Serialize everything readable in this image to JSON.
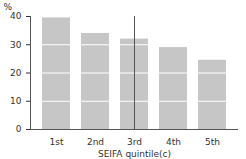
{
  "chart_data": {
    "type": "bar",
    "categories": [
      "1st",
      "2nd",
      "3rd",
      "4th",
      "5th"
    ],
    "values": [
      39.5,
      34,
      32,
      29,
      24.5
    ],
    "color": "#c6c6c6",
    "xlabel": "SEIFA quintile(c)",
    "ylabel": "%",
    "ylim": [
      0,
      40
    ],
    "yticks": [
      0,
      10,
      20,
      30,
      40
    ],
    "grid": true
  }
}
